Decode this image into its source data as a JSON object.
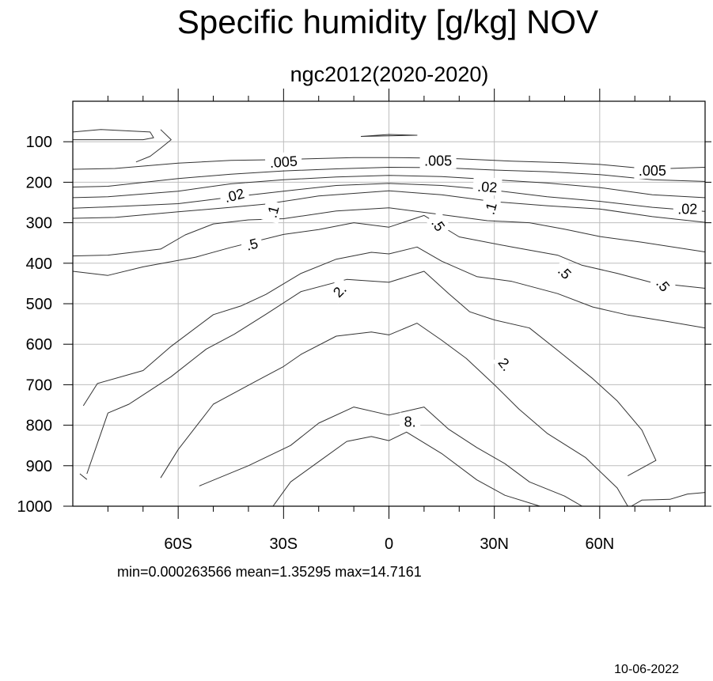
{
  "chart_data": {
    "type": "contour",
    "title": "Specific humidity [g/kg] NOV",
    "subtitle": "ngc2012(2020-2020)",
    "xlabel": "",
    "ylabel": "",
    "x_axis": {
      "range": [
        -90,
        90
      ],
      "ticks": [
        {
          "value": -60,
          "label": "60S"
        },
        {
          "value": -30,
          "label": "30S"
        },
        {
          "value": 0,
          "label": "0"
        },
        {
          "value": 30,
          "label": "30N"
        },
        {
          "value": 60,
          "label": "60N"
        }
      ],
      "minor_step": 10
    },
    "y_axis": {
      "range": [
        0,
        1000
      ],
      "inverted": true,
      "ticks": [
        100,
        200,
        300,
        400,
        500,
        600,
        700,
        800,
        900,
        1000
      ],
      "tick_labels": [
        "100",
        "200",
        "300",
        "400",
        "500",
        "600",
        "700",
        "800",
        "900",
        "1000"
      ]
    },
    "grid": true,
    "levels": [
      {
        "value": 0.005,
        "label": ".005",
        "lines": [
          [
            [
              -90,
              168
            ],
            [
              -78,
              166
            ],
            [
              -60,
              153
            ],
            [
              -45,
              146
            ],
            [
              -30,
              144
            ],
            [
              -10,
              139
            ],
            [
              0,
              139
            ],
            [
              10,
              140
            ],
            [
              20,
              142
            ],
            [
              35,
              148
            ],
            [
              50,
              152
            ],
            [
              60,
              156
            ],
            [
              70,
              164
            ],
            [
              80,
              166
            ],
            [
              90,
              163
            ]
          ]
        ],
        "labels": [
          {
            "x": -30,
            "y": 150,
            "angle": -4
          },
          {
            "x": 14,
            "y": 147,
            "angle": 0
          },
          {
            "x": 75,
            "y": 172,
            "angle": 0
          }
        ]
      },
      {
        "value": 0.01,
        "label": "",
        "lines": [
          [
            [
              -90,
              212
            ],
            [
              -80,
              210
            ],
            [
              -60,
              191
            ],
            [
              -45,
              180
            ],
            [
              -30,
              172
            ],
            [
              -15,
              167
            ],
            [
              0,
              163
            ],
            [
              15,
              164
            ],
            [
              30,
              170
            ],
            [
              45,
              174
            ],
            [
              60,
              181
            ],
            [
              75,
              194
            ],
            [
              90,
              198
            ]
          ]
        ],
        "labels": []
      },
      {
        "value": 0.02,
        "label": ".02",
        "lines": [
          [
            [
              -90,
              238
            ],
            [
              -80,
              236
            ],
            [
              -60,
              222
            ],
            [
              -45,
              204
            ],
            [
              -30,
              194
            ],
            [
              -15,
              187
            ],
            [
              0,
              183
            ],
            [
              15,
              186
            ],
            [
              30,
              194
            ],
            [
              45,
              202
            ],
            [
              60,
              213
            ],
            [
              75,
              231
            ],
            [
              90,
              238
            ]
          ]
        ],
        "labels": [
          {
            "x": -44,
            "y": 233,
            "angle": -14
          },
          {
            "x": 28,
            "y": 212,
            "angle": 4
          },
          {
            "x": 85,
            "y": 267,
            "angle": 0
          }
        ]
      },
      {
        "value": 0.05,
        "label": "",
        "lines": [
          [
            [
              -90,
              264
            ],
            [
              -80,
              261
            ],
            [
              -60,
              253
            ],
            [
              -45,
              237
            ],
            [
              -30,
              222
            ],
            [
              -15,
              208
            ],
            [
              0,
              203
            ],
            [
              15,
              208
            ],
            [
              30,
              220
            ],
            [
              45,
              236
            ],
            [
              60,
              247
            ],
            [
              75,
              262
            ],
            [
              90,
              272
            ]
          ]
        ],
        "labels": []
      },
      {
        "value": 0.1,
        "label": ".1",
        "lines": [
          [
            [
              -90,
              289
            ],
            [
              -78,
              287
            ],
            [
              -60,
              273
            ],
            [
              -45,
              262
            ],
            [
              -35,
              254
            ],
            [
              -20,
              234
            ],
            [
              0,
              221
            ],
            [
              15,
              231
            ],
            [
              30,
              248
            ],
            [
              45,
              258
            ],
            [
              60,
              266
            ],
            [
              75,
              285
            ],
            [
              90,
              299
            ]
          ]
        ],
        "labels": [
          {
            "x": -33,
            "y": 273,
            "angle": -75
          },
          {
            "x": 29,
            "y": 265,
            "angle": -75
          }
        ]
      },
      {
        "value": 0.2,
        "label": "",
        "lines": [
          [
            [
              -90,
              382
            ],
            [
              -80,
              380
            ],
            [
              -65,
              365
            ],
            [
              -58,
              330
            ],
            [
              -50,
              303
            ],
            [
              -40,
              293
            ],
            [
              -30,
              290
            ],
            [
              -15,
              271
            ],
            [
              0,
              263
            ],
            [
              15,
              280
            ],
            [
              28,
              295
            ],
            [
              40,
              300
            ],
            [
              50,
              316
            ],
            [
              60,
              334
            ],
            [
              72,
              348
            ],
            [
              90,
              372
            ]
          ]
        ],
        "labels": []
      },
      {
        "value": 0.5,
        "label": ".5",
        "lines": [
          [
            [
              -90,
              420
            ],
            [
              -80,
              430
            ],
            [
              -70,
              409
            ],
            [
              -55,
              385
            ],
            [
              -45,
              361
            ],
            [
              -30,
              329
            ],
            [
              -20,
              317
            ],
            [
              -10,
              300
            ],
            [
              0,
              311
            ],
            [
              10,
              282
            ],
            [
              20,
              335
            ],
            [
              35,
              360
            ],
            [
              48,
              380
            ],
            [
              55,
              405
            ],
            [
              65,
              425
            ],
            [
              75,
              448
            ],
            [
              90,
              462
            ]
          ]
        ],
        "labels": [
          {
            "x": -39,
            "y": 354,
            "angle": -15
          },
          {
            "x": 14,
            "y": 305,
            "angle": 55
          },
          {
            "x": 50,
            "y": 423,
            "angle": 45
          },
          {
            "x": 78,
            "y": 454,
            "angle": 50
          }
        ]
      },
      {
        "value": 1,
        "label": "",
        "lines": [
          [
            [
              -87,
              752
            ],
            [
              -83,
              697
            ],
            [
              -70,
              665
            ],
            [
              -62,
              605
            ],
            [
              -50,
              527
            ],
            [
              -42,
              505
            ],
            [
              -35,
              477
            ],
            [
              -25,
              425
            ],
            [
              -15,
              390
            ],
            [
              -5,
              373
            ],
            [
              0,
              377
            ],
            [
              8,
              360
            ],
            [
              15,
              395
            ],
            [
              25,
              433
            ],
            [
              35,
              445
            ],
            [
              48,
              475
            ],
            [
              58,
              508
            ],
            [
              68,
              528
            ],
            [
              80,
              545
            ],
            [
              90,
              560
            ]
          ]
        ],
        "labels": []
      },
      {
        "value": 2,
        "label": "2.",
        "lines": [
          [
            [
              -86,
              920
            ],
            [
              -80,
              770
            ],
            [
              -74,
              748
            ],
            [
              -62,
              680
            ],
            [
              -52,
              612
            ],
            [
              -44,
              575
            ],
            [
              -35,
              526
            ],
            [
              -25,
              470
            ],
            [
              -12,
              440
            ],
            [
              0,
              447
            ],
            [
              10,
              420
            ],
            [
              17,
              475
            ],
            [
              23,
              520
            ],
            [
              30,
              540
            ],
            [
              40,
              560
            ],
            [
              48,
              615
            ],
            [
              58,
              685
            ],
            [
              65,
              740
            ],
            [
              72,
              812
            ],
            [
              76,
              887
            ],
            [
              68,
              925
            ]
          ]
        ],
        "labels": [
          {
            "x": -14,
            "y": 468,
            "angle": -45
          },
          {
            "x": 33,
            "y": 650,
            "angle": 52
          }
        ]
      },
      {
        "value": 5,
        "label": "",
        "lines": [
          [
            [
              -65,
              930
            ],
            [
              -60,
              860
            ],
            [
              -50,
              748
            ],
            [
              -38,
              692
            ],
            [
              -30,
              655
            ],
            [
              -25,
              625
            ],
            [
              -15,
              580
            ],
            [
              -5,
              570
            ],
            [
              0,
              577
            ],
            [
              8,
              548
            ],
            [
              15,
              590
            ],
            [
              22,
              635
            ],
            [
              30,
              700
            ],
            [
              37,
              760
            ],
            [
              45,
              820
            ],
            [
              56,
              880
            ],
            [
              65,
              955
            ],
            [
              68,
              1000
            ]
          ]
        ],
        "labels": []
      },
      {
        "value": 8,
        "label": "8.",
        "lines": [
          [
            [
              -54,
              950
            ],
            [
              -40,
              900
            ],
            [
              -28,
              850
            ],
            [
              -20,
              795
            ],
            [
              -10,
              755
            ],
            [
              0,
              775
            ],
            [
              10,
              755
            ],
            [
              17,
              810
            ],
            [
              25,
              855
            ],
            [
              33,
              895
            ],
            [
              40,
              940
            ],
            [
              50,
              975
            ],
            [
              55,
              1000
            ]
          ]
        ],
        "labels": [
          {
            "x": 6,
            "y": 792,
            "angle": 0
          }
        ]
      },
      {
        "value": 12,
        "label": "",
        "lines": [
          [
            [
              -33,
              1000
            ],
            [
              -28,
              940
            ],
            [
              -20,
              890
            ],
            [
              -12,
              840
            ],
            [
              -5,
              828
            ],
            [
              0,
              838
            ],
            [
              5,
              817
            ],
            [
              15,
              870
            ],
            [
              25,
              935
            ],
            [
              33,
              973
            ],
            [
              43,
              1000
            ]
          ]
        ],
        "labels": []
      },
      {
        "value": 0.002,
        "label": "",
        "lines": [
          [
            [
              -90,
              76
            ],
            [
              -82,
              70
            ],
            [
              -68,
              76
            ],
            [
              -67,
              90
            ],
            [
              -70,
              95
            ],
            [
              -82,
              95
            ],
            [
              -90,
              95
            ]
          ],
          [
            [
              -65,
              70
            ],
            [
              -62,
              95
            ],
            [
              -65,
              116
            ],
            [
              -68,
              136
            ],
            [
              -72,
              150
            ]
          ],
          [
            [
              -8,
              87
            ],
            [
              0,
              82
            ],
            [
              8,
              84
            ],
            [
              -8,
              87
            ]
          ]
        ],
        "labels": []
      },
      {
        "value": 0.0005,
        "label": "",
        "lines": [
          [
            [
              -88,
              920
            ],
            [
              -86,
              934
            ]
          ],
          [
            [
              69,
              1000
            ],
            [
              72,
              985
            ],
            [
              80,
              983
            ],
            [
              85,
              970
            ],
            [
              90,
              966
            ]
          ]
        ],
        "labels": []
      }
    ]
  },
  "stats": "min=0.000263566   mean=1.35295   max=14.7161",
  "date": "10-06-2022"
}
